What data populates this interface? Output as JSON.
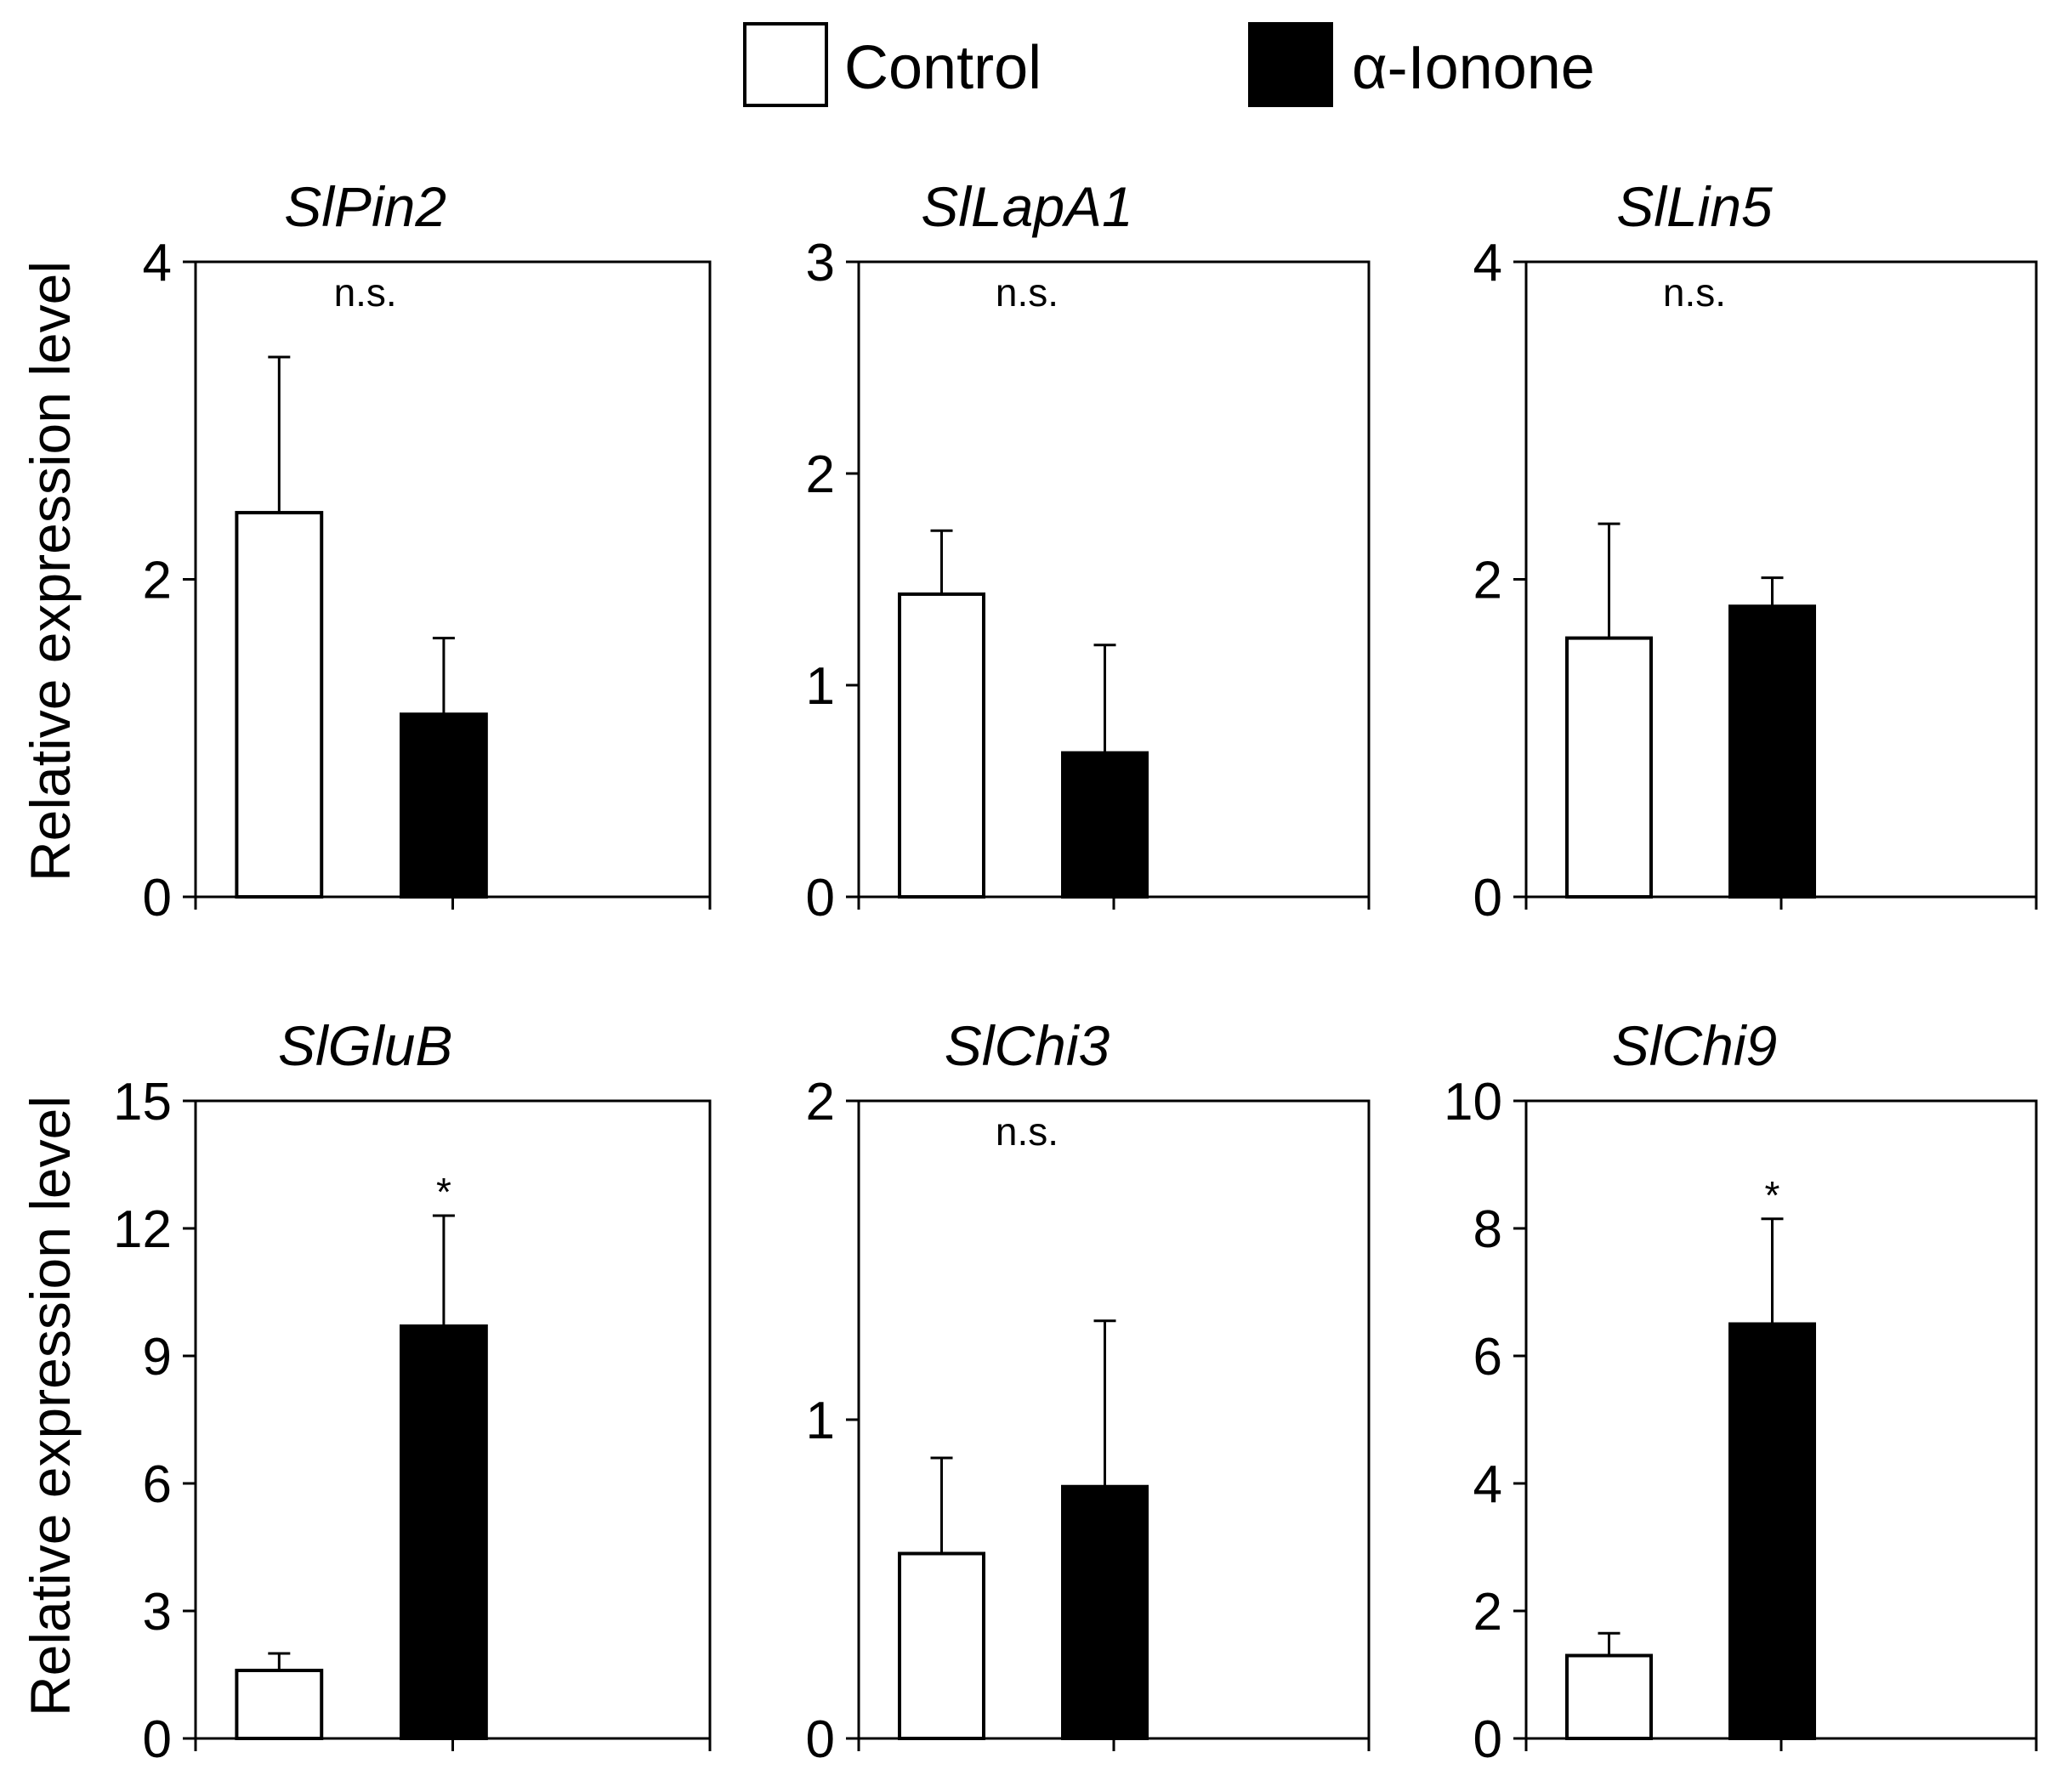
{
  "legend": [
    {
      "label": "Control",
      "color": "#ffffff"
    },
    {
      "label": "α-Ionone",
      "color": "#000000"
    }
  ],
  "ylabel": "Relative expression level",
  "chart_data": [
    {
      "type": "bar",
      "title": "SlPin2",
      "ylim": [
        0,
        4
      ],
      "yticks": [
        "0",
        "2",
        "4"
      ],
      "annotation": "n.s.",
      "series": [
        {
          "name": "Control",
          "values": [
            2.42
          ],
          "error": [
            0.98
          ]
        },
        {
          "name": "α-Ionone",
          "values": [
            1.15
          ],
          "error": [
            0.48
          ]
        }
      ]
    },
    {
      "type": "bar",
      "title": "SlLapA1",
      "ylim": [
        0,
        3
      ],
      "yticks": [
        "0",
        "1",
        "2",
        "3"
      ],
      "annotation": "n.s.",
      "series": [
        {
          "name": "Control",
          "values": [
            1.43
          ],
          "error": [
            0.3
          ]
        },
        {
          "name": "α-Ionone",
          "values": [
            0.68
          ],
          "error": [
            0.51
          ]
        }
      ]
    },
    {
      "type": "bar",
      "title": "SlLin5",
      "ylim": [
        0,
        4
      ],
      "yticks": [
        "0",
        "2",
        "4"
      ],
      "annotation": "n.s.",
      "series": [
        {
          "name": "Control",
          "values": [
            1.63
          ],
          "error": [
            0.72
          ]
        },
        {
          "name": "α-Ionone",
          "values": [
            1.83
          ],
          "error": [
            0.18
          ]
        }
      ]
    },
    {
      "type": "bar",
      "title": "SlGluB",
      "ylim": [
        0,
        15
      ],
      "yticks": [
        "0",
        "3",
        "6",
        "9",
        "12",
        "15"
      ],
      "annotation": "*",
      "series": [
        {
          "name": "Control",
          "values": [
            1.6
          ],
          "error": [
            0.4
          ]
        },
        {
          "name": "α-Ionone",
          "values": [
            9.7
          ],
          "error": [
            2.6
          ]
        }
      ]
    },
    {
      "type": "bar",
      "title": "SlChi3",
      "ylim": [
        0,
        2
      ],
      "yticks": [
        "0",
        "1",
        "2"
      ],
      "annotation": "n.s.",
      "series": [
        {
          "name": "Control",
          "values": [
            0.58
          ],
          "error": [
            0.3
          ]
        },
        {
          "name": "α-Ionone",
          "values": [
            0.79
          ],
          "error": [
            0.52
          ]
        }
      ]
    },
    {
      "type": "bar",
      "title": "SlChi9",
      "ylim": [
        0,
        10
      ],
      "yticks": [
        "0",
        "2",
        "4",
        "6",
        "8",
        "10"
      ],
      "annotation": "*",
      "series": [
        {
          "name": "Control",
          "values": [
            1.3
          ],
          "error": [
            0.35
          ]
        },
        {
          "name": "α-Ionone",
          "values": [
            6.5
          ],
          "error": [
            1.65
          ]
        }
      ]
    }
  ]
}
